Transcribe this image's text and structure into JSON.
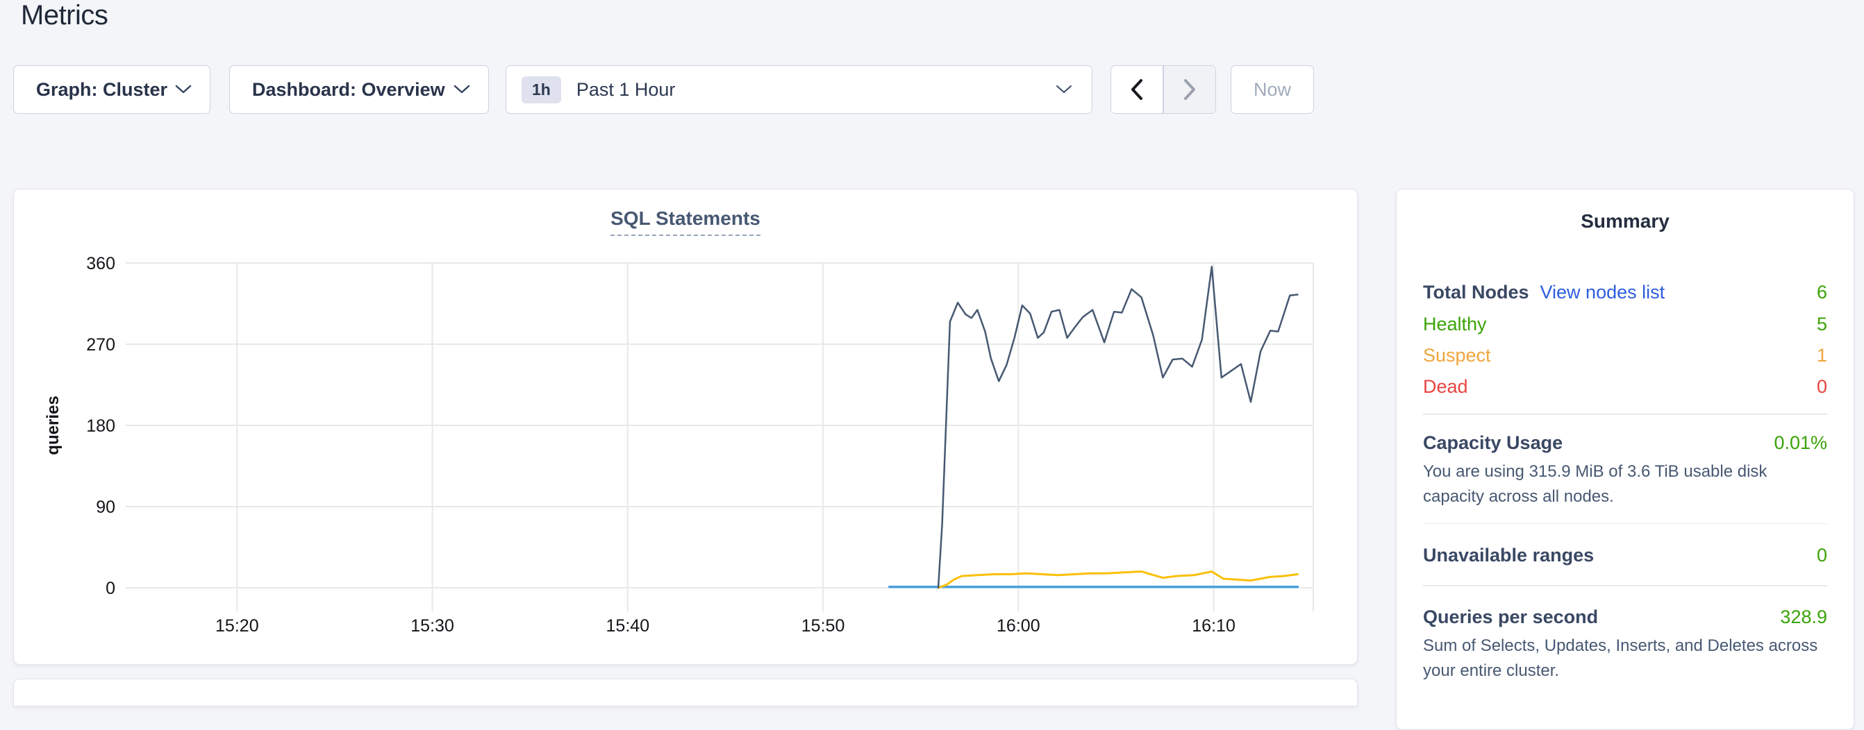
{
  "page": {
    "title": "Metrics"
  },
  "controls": {
    "graph_dropdown": {
      "label": "Graph: Cluster"
    },
    "dashboard_dropdown": {
      "label": "Dashboard: Overview"
    },
    "time_range": {
      "badge": "1h",
      "label": "Past 1 Hour"
    },
    "now_button": {
      "label": "Now"
    }
  },
  "chart_data": {
    "type": "line",
    "title": "SQL Statements",
    "xlabel": "",
    "ylabel": "queries",
    "ylim": [
      0,
      360
    ],
    "y_ticks": [
      0,
      90,
      180,
      270,
      360
    ],
    "x_ticks": [
      {
        "label": "15:20",
        "minute": 20
      },
      {
        "label": "15:30",
        "minute": 30
      },
      {
        "label": "15:40",
        "minute": 40
      },
      {
        "label": "15:50",
        "minute": 50
      },
      {
        "label": "16:00",
        "minute": 60
      },
      {
        "label": "16:10",
        "minute": 70
      }
    ],
    "x_range_minutes": [
      14.3,
      75.1
    ],
    "grid": true,
    "legend_position": "none",
    "series": [
      {
        "name": "blue-line",
        "color": "#4aa0dd",
        "width": 3.5,
        "points": [
          [
            53.4,
            1
          ],
          [
            74.3,
            1
          ]
        ]
      },
      {
        "name": "yellow-line",
        "color": "#fbc008",
        "width": 3,
        "points": [
          [
            55.9,
            0
          ],
          [
            56.3,
            3
          ],
          [
            56.7,
            9
          ],
          [
            57.1,
            13
          ],
          [
            57.9,
            14
          ],
          [
            58.8,
            15
          ],
          [
            59.6,
            15
          ],
          [
            60.4,
            16
          ],
          [
            61.2,
            15
          ],
          [
            62.0,
            14
          ],
          [
            62.9,
            15
          ],
          [
            63.7,
            16
          ],
          [
            64.5,
            16
          ],
          [
            65.4,
            17
          ],
          [
            66.3,
            18
          ],
          [
            67.4,
            11
          ],
          [
            68.1,
            13
          ],
          [
            69.0,
            14
          ],
          [
            69.9,
            18
          ],
          [
            70.5,
            10
          ],
          [
            71.2,
            9
          ],
          [
            71.9,
            8
          ],
          [
            72.9,
            12
          ],
          [
            73.6,
            13
          ],
          [
            74.3,
            15
          ]
        ]
      },
      {
        "name": "navy-line",
        "color": "#475872",
        "width": 2.5,
        "points": [
          [
            55.9,
            0
          ],
          [
            56.1,
            70
          ],
          [
            56.5,
            295
          ],
          [
            56.9,
            316
          ],
          [
            57.3,
            303
          ],
          [
            57.6,
            299
          ],
          [
            57.9,
            308
          ],
          [
            58.3,
            284
          ],
          [
            58.6,
            254
          ],
          [
            59.0,
            229
          ],
          [
            59.4,
            247
          ],
          [
            59.8,
            277
          ],
          [
            60.2,
            313
          ],
          [
            60.6,
            304
          ],
          [
            61.0,
            277
          ],
          [
            61.3,
            283
          ],
          [
            61.7,
            306
          ],
          [
            62.1,
            308
          ],
          [
            62.5,
            277
          ],
          [
            62.9,
            289
          ],
          [
            63.3,
            300
          ],
          [
            63.8,
            308
          ],
          [
            64.4,
            272
          ],
          [
            64.9,
            306
          ],
          [
            65.3,
            305
          ],
          [
            65.8,
            331
          ],
          [
            66.3,
            322
          ],
          [
            66.9,
            280
          ],
          [
            67.4,
            233
          ],
          [
            67.9,
            253
          ],
          [
            68.4,
            254
          ],
          [
            68.9,
            245
          ],
          [
            69.4,
            275
          ],
          [
            69.9,
            356
          ],
          [
            70.4,
            233
          ],
          [
            70.8,
            239
          ],
          [
            71.4,
            248
          ],
          [
            71.9,
            206
          ],
          [
            72.4,
            262
          ],
          [
            72.9,
            285
          ],
          [
            73.3,
            284
          ],
          [
            73.9,
            324
          ],
          [
            74.3,
            325
          ]
        ]
      }
    ]
  },
  "summary": {
    "title": "Summary",
    "total_nodes": {
      "label": "Total Nodes",
      "link": "View nodes list",
      "value": "6"
    },
    "node_status_rows": [
      {
        "label": "Healthy",
        "value": "5",
        "color": "#3aa307"
      },
      {
        "label": "Suspect",
        "value": "1",
        "color": "#f1a53c"
      },
      {
        "label": "Dead",
        "value": "0",
        "color": "#e8443f"
      }
    ],
    "capacity": {
      "label": "Capacity Usage",
      "value": "0.01%",
      "description": "You are using 315.9 MiB of 3.6 TiB usable disk capacity across all nodes."
    },
    "unavailable": {
      "label": "Unavailable ranges",
      "value": "0"
    },
    "qps": {
      "label": "Queries per second",
      "value": "328.9",
      "description": "Sum of Selects, Updates, Inserts, and Deletes across your entire cluster."
    },
    "colors": {
      "value_green": "#3aa307",
      "link_blue": "#2c5de0"
    }
  }
}
